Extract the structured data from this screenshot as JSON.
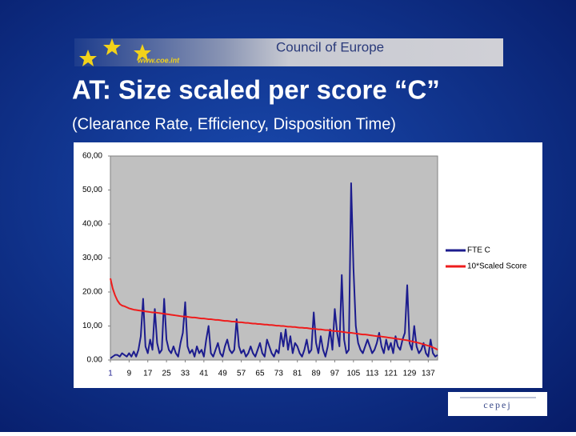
{
  "banner": {
    "url": "www.coe.int",
    "org": "Council of Europe"
  },
  "footer_logo": "cepej",
  "chart_data": {
    "type": "line",
    "title": "AT: Size scaled per score “C”",
    "subtitle": "(Clearance Rate, Efficiency, Disposition Time)",
    "x": [
      1,
      2,
      3,
      4,
      5,
      6,
      7,
      8,
      9,
      10,
      11,
      12,
      13,
      14,
      15,
      16,
      17,
      18,
      19,
      20,
      21,
      22,
      23,
      24,
      25,
      26,
      27,
      28,
      29,
      30,
      31,
      32,
      33,
      34,
      35,
      36,
      37,
      38,
      39,
      40,
      41,
      42,
      43,
      44,
      45,
      46,
      47,
      48,
      49,
      50,
      51,
      52,
      53,
      54,
      55,
      56,
      57,
      58,
      59,
      60,
      61,
      62,
      63,
      64,
      65,
      66,
      67,
      68,
      69,
      70,
      71,
      72,
      73,
      74,
      75,
      76,
      77,
      78,
      79,
      80,
      81,
      82,
      83,
      84,
      85,
      86,
      87,
      88,
      89,
      90,
      91,
      92,
      93,
      94,
      95,
      96,
      97,
      98,
      99,
      100,
      101,
      102,
      103,
      104,
      105,
      106,
      107,
      108,
      109,
      110,
      111,
      112,
      113,
      114,
      115,
      116,
      117,
      118,
      119,
      120,
      121,
      122,
      123,
      124,
      125,
      126,
      127,
      128,
      129,
      130,
      131,
      132,
      133,
      134,
      135,
      136,
      137,
      138,
      139,
      140,
      141
    ],
    "xlim": [
      1,
      141
    ],
    "xticks": [
      1,
      9,
      17,
      25,
      33,
      41,
      49,
      57,
      65,
      73,
      81,
      89,
      97,
      105,
      113,
      121,
      129,
      137
    ],
    "ylim": [
      0,
      60
    ],
    "yticks": [
      {
        "value": 0,
        "label": "0.00"
      },
      {
        "value": 10,
        "label": "10,00"
      },
      {
        "value": 20,
        "label": "20.00"
      },
      {
        "value": 30,
        "label": "30,00"
      },
      {
        "value": 40,
        "label": "40,00"
      },
      {
        "value": 50,
        "label": "50,00"
      },
      {
        "value": 60,
        "label": "60,00"
      }
    ],
    "legend": "right",
    "series": [
      {
        "name": "FTE C",
        "color": "#1c1c8e",
        "values": [
          0.5,
          1,
          1.5,
          1.5,
          1,
          2,
          1.5,
          1,
          2,
          1,
          2.5,
          1,
          3,
          7,
          18,
          4,
          2,
          6,
          3,
          15,
          5,
          2,
          3,
          18,
          6,
          3,
          2,
          4,
          2,
          1,
          5,
          8,
          17,
          4,
          2,
          3,
          1,
          4,
          2,
          3,
          1,
          6,
          10,
          2,
          1,
          3,
          5,
          2,
          1,
          4,
          6,
          3,
          2,
          3,
          12,
          4,
          2,
          3,
          1,
          2,
          4,
          2,
          1,
          3,
          5,
          2,
          1,
          6,
          4,
          2,
          1,
          3,
          2,
          8,
          4,
          9,
          3,
          7,
          2,
          5,
          4,
          2,
          1,
          3,
          6,
          2,
          3,
          14,
          5,
          2,
          7,
          3,
          1,
          4,
          9,
          3,
          15,
          8,
          4,
          25,
          6,
          2,
          3,
          52,
          27,
          10,
          5,
          3,
          2,
          4,
          6,
          4,
          2,
          3,
          5,
          8,
          4,
          2,
          6,
          3,
          5,
          2,
          7,
          4,
          3,
          6,
          8,
          22,
          5,
          3,
          10,
          4,
          2,
          3,
          5,
          2,
          1,
          6,
          2,
          1,
          1.5
        ]
      },
      {
        "name": "10*Scaled Score",
        "color": "#ee1c1c",
        "values": [
          24,
          21,
          19,
          17.5,
          16.5,
          16,
          15.8,
          15.5,
          15.2,
          15,
          14.8,
          14.7,
          14.6,
          14.5,
          14.4,
          14.3,
          14.2,
          14.1,
          14,
          14,
          13.9,
          13.8,
          13.7,
          13.6,
          13.5,
          13.4,
          13.3,
          13.2,
          13.1,
          13,
          12.9,
          12.8,
          12.8,
          12.7,
          12.6,
          12.5,
          12.5,
          12.4,
          12.3,
          12.2,
          12.2,
          12.1,
          12,
          12,
          11.9,
          11.8,
          11.8,
          11.7,
          11.6,
          11.5,
          11.5,
          11.4,
          11.3,
          11.3,
          11.2,
          11.1,
          11.1,
          11,
          10.9,
          10.9,
          10.8,
          10.7,
          10.7,
          10.6,
          10.6,
          10.5,
          10.4,
          10.4,
          10.3,
          10.3,
          10.2,
          10.1,
          10.1,
          10,
          10,
          9.9,
          9.8,
          9.8,
          9.7,
          9.7,
          9.6,
          9.5,
          9.5,
          9.4,
          9.4,
          9.3,
          9.2,
          9.2,
          9.1,
          9,
          9,
          8.9,
          8.8,
          8.8,
          8.7,
          8.6,
          8.5,
          8.5,
          8.4,
          8.3,
          8.2,
          8.1,
          8,
          8,
          7.9,
          7.8,
          7.7,
          7.6,
          7.5,
          7.5,
          7.4,
          7.3,
          7.2,
          7.1,
          7,
          7,
          6.9,
          6.8,
          6.7,
          6.6,
          6.5,
          6.4,
          6.3,
          6.2,
          6.1,
          6,
          5.9,
          5.8,
          5.6,
          5.5,
          5.3,
          5.2,
          5,
          4.8,
          4.6,
          4.4,
          4.2,
          4,
          3.7,
          3.4,
          3
        ]
      }
    ]
  }
}
